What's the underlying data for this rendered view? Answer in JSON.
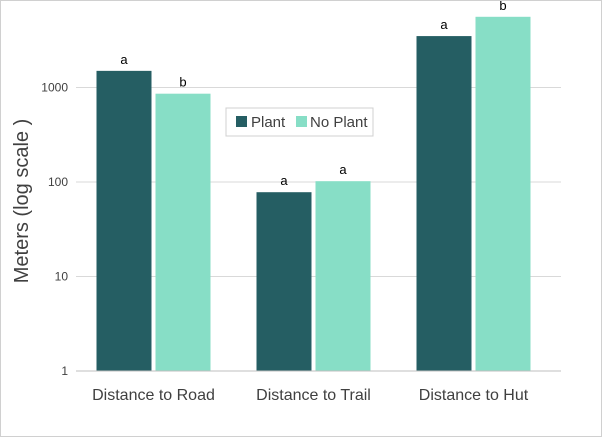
{
  "chart_data": {
    "type": "bar",
    "title": "",
    "xlabel": "",
    "ylabel": "Meters (log scale )",
    "yscale": "log",
    "ylim": [
      1,
      5000
    ],
    "yticks": [
      1,
      10,
      100,
      1000
    ],
    "ytick_labels": [
      "1",
      "10",
      "100",
      "1000"
    ],
    "grid": true,
    "legend_position": "top-center",
    "categories": [
      "Distance to Road",
      "Distance to Trail",
      "Distance to Hut"
    ],
    "series": [
      {
        "name": "Plant",
        "color": "#255e63",
        "values": [
          1500,
          78,
          3500
        ],
        "labels": [
          "a",
          "a",
          "a"
        ]
      },
      {
        "name": "No Plant",
        "color": "#87dec6",
        "values": [
          860,
          102,
          5600
        ],
        "labels": [
          "b",
          "a",
          "b"
        ]
      }
    ]
  }
}
